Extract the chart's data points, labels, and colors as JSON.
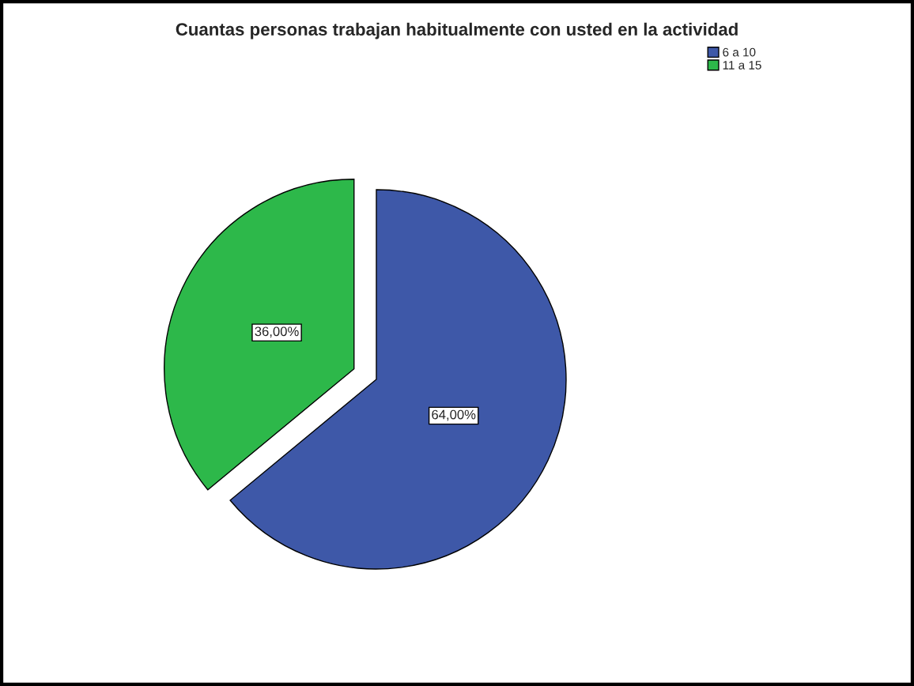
{
  "chart_data": {
    "type": "pie",
    "title": "Cuantas personas trabajan habitualmente con usted en la actividad",
    "categories": [
      "6 a 10",
      "11 a 15"
    ],
    "values": [
      64,
      36
    ],
    "colors": [
      "#3e58a8",
      "#2db84a"
    ],
    "value_labels": [
      "64,00%",
      "36,00%"
    ],
    "legend": "top right"
  }
}
